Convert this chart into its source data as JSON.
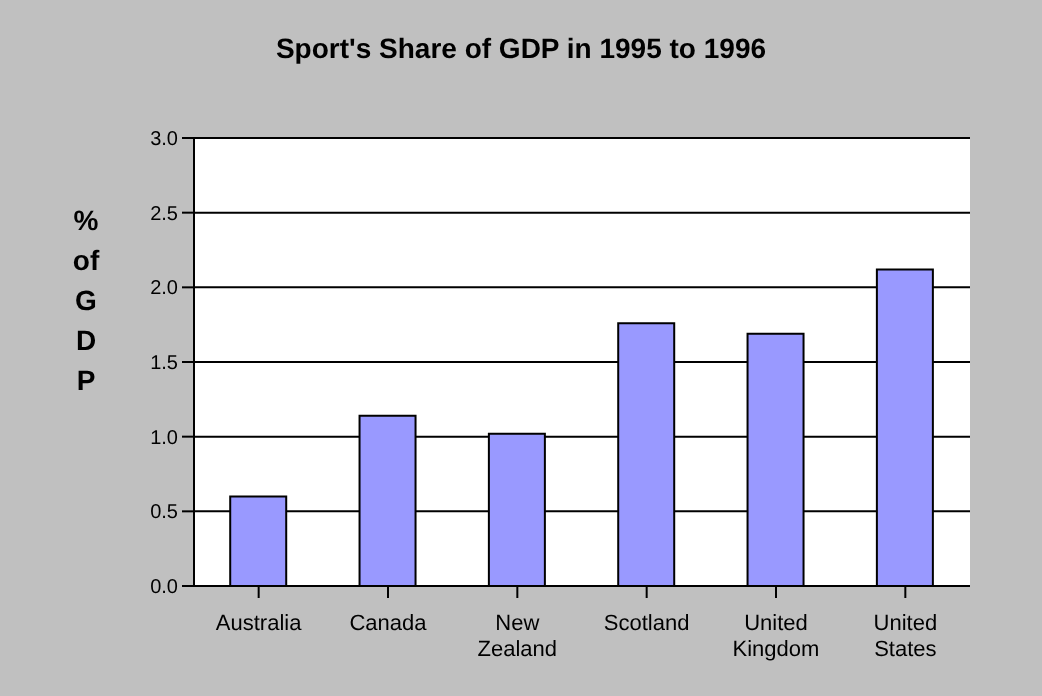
{
  "chart_data": {
    "type": "bar",
    "title": "Sport's Share of GDP in 1995 to 1996",
    "ylabel": "% of GDP",
    "categories": [
      "Australia",
      "Canada",
      "New Zealand",
      "Scotland",
      "United Kingdom",
      "United States"
    ],
    "values": [
      0.6,
      1.14,
      1.02,
      1.76,
      1.69,
      2.12
    ],
    "color": "#9999ff",
    "ylim": [
      0,
      3
    ],
    "yticks": [
      {
        "value": 0,
        "label": "0.0"
      },
      {
        "value": 0.5,
        "label": "0.5"
      },
      {
        "value": 1,
        "label": "1.0"
      },
      {
        "value": 1.5,
        "label": "1.5"
      },
      {
        "value": 2,
        "label": "2.0"
      },
      {
        "value": 2.5,
        "label": "2.5"
      },
      {
        "value": 3,
        "label": "3.0"
      }
    ],
    "grid": "y"
  }
}
